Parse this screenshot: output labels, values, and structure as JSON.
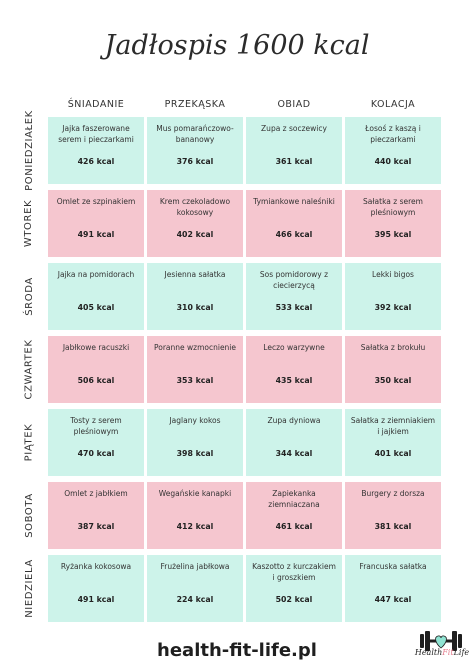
{
  "title": "Jadłospis 1600 kcal",
  "columns": [
    "ŚNIADANIE",
    "PRZEKĄSKA",
    "OBIAD",
    "KOLACJA"
  ],
  "days": [
    {
      "label": "PONIEDZIAŁEK",
      "meals": [
        {
          "name": "Jajka faszerowane serem i pieczarkami",
          "kcal": "426 kcal"
        },
        {
          "name": "Mus pomarańczowo-bananowy",
          "kcal": "376 kcal"
        },
        {
          "name": "Zupa z soczewicy",
          "kcal": "361 kcal"
        },
        {
          "name": "Łosoś z kaszą i pieczarkami",
          "kcal": "440 kcal"
        }
      ]
    },
    {
      "label": "WTOREK",
      "meals": [
        {
          "name": "Omlet ze szpinakiem",
          "kcal": "491 kcal"
        },
        {
          "name": "Krem czekoladowo kokosowy",
          "kcal": "402 kcal"
        },
        {
          "name": "Tymiankowe naleśniki",
          "kcal": "466 kcal"
        },
        {
          "name": "Sałatka z serem pleśniowym",
          "kcal": "395 kcal"
        }
      ]
    },
    {
      "label": "ŚRODA",
      "meals": [
        {
          "name": "Jajka na pomidorach",
          "kcal": "405 kcal"
        },
        {
          "name": "Jesienna sałatka",
          "kcal": "310 kcal"
        },
        {
          "name": "Sos pomidorowy z ciecierzycą",
          "kcal": "533 kcal"
        },
        {
          "name": "Lekki bigos",
          "kcal": "392 kcal"
        }
      ]
    },
    {
      "label": "CZWARTEK",
      "meals": [
        {
          "name": "Jabłkowe racuszki",
          "kcal": "506 kcal"
        },
        {
          "name": "Poranne wzmocnienie",
          "kcal": "353 kcal"
        },
        {
          "name": "Leczo warzywne",
          "kcal": "435 kcal"
        },
        {
          "name": "Sałatka z brokułu",
          "kcal": "350 kcal"
        }
      ]
    },
    {
      "label": "PIĄTEK",
      "meals": [
        {
          "name": "Tosty z serem pleśniowym",
          "kcal": "470 kcal"
        },
        {
          "name": "Jaglany kokos",
          "kcal": "398 kcal"
        },
        {
          "name": "Zupa dyniowa",
          "kcal": "344 kcal"
        },
        {
          "name": "Sałatka z ziemniakiem i jajkiem",
          "kcal": "401 kcal"
        }
      ]
    },
    {
      "label": "SOBOTA",
      "meals": [
        {
          "name": "Omlet z jabłkiem",
          "kcal": "387 kcal"
        },
        {
          "name": "Wegańskie kanapki",
          "kcal": "412 kcal"
        },
        {
          "name": "Zapiekanka ziemniaczana",
          "kcal": "461 kcal"
        },
        {
          "name": "Burgery z dorsza",
          "kcal": "381 kcal"
        }
      ]
    },
    {
      "label": "NIEDZIELA",
      "meals": [
        {
          "name": "Ryżanka kokosowa",
          "kcal": "491 kcal"
        },
        {
          "name": "Frużelina jabłkowa",
          "kcal": "224 kcal"
        },
        {
          "name": "Kaszotto z kurczakiem i groszkiem",
          "kcal": "502 kcal"
        },
        {
          "name": "Francuska sałatka",
          "kcal": "447 kcal"
        }
      ]
    }
  ],
  "footer": "health-fit-life.pl",
  "logo": {
    "part1": "Health",
    "part2": "Fit",
    "part3": "Life",
    "icon": "dumbbell-heart-icon"
  },
  "colors": {
    "mint": "#cdf3ea",
    "pink": "#f5c6cf"
  }
}
